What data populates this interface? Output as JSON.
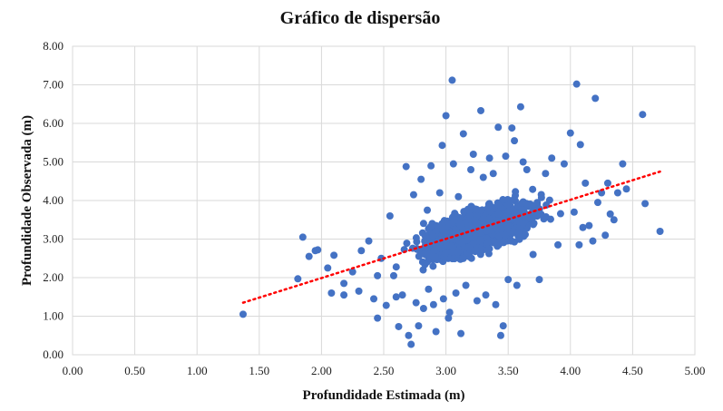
{
  "chart_data": {
    "type": "scatter",
    "title": "Gráfico de dispersão",
    "xlabel": "Profundidade Estimada (m)",
    "ylabel": "Profundidade Observada (m)",
    "xlim": [
      0,
      5
    ],
    "ylim": [
      0,
      8
    ],
    "x_ticks": [
      "0.00",
      "0.50",
      "1.00",
      "1.50",
      "2.00",
      "2.50",
      "3.00",
      "3.50",
      "4.00",
      "4.50",
      "5.00"
    ],
    "y_ticks": [
      "0.00",
      "1.00",
      "2.00",
      "3.00",
      "4.00",
      "5.00",
      "6.00",
      "7.00",
      "8.00"
    ],
    "grid": true,
    "series": [
      {
        "marker_color": "#4472c4",
        "points": [
          [
            1.37,
            1.05
          ],
          [
            1.81,
            1.97
          ],
          [
            1.85,
            3.05
          ],
          [
            1.9,
            2.55
          ],
          [
            1.95,
            2.7
          ],
          [
            1.97,
            2.72
          ],
          [
            2.08,
            1.6
          ],
          [
            2.05,
            2.25
          ],
          [
            2.1,
            2.58
          ],
          [
            2.18,
            1.55
          ],
          [
            2.18,
            1.85
          ],
          [
            2.25,
            2.15
          ],
          [
            2.3,
            1.65
          ],
          [
            2.32,
            2.7
          ],
          [
            2.38,
            2.95
          ],
          [
            2.42,
            1.45
          ],
          [
            2.45,
            0.95
          ],
          [
            2.45,
            2.05
          ],
          [
            2.48,
            2.5
          ],
          [
            2.52,
            1.28
          ],
          [
            2.55,
            3.6
          ],
          [
            2.58,
            2.05
          ],
          [
            2.6,
            1.5
          ],
          [
            2.62,
            0.73
          ],
          [
            2.65,
            1.55
          ],
          [
            2.68,
            4.88
          ],
          [
            2.7,
            0.5
          ],
          [
            2.72,
            0.27
          ],
          [
            2.74,
            4.15
          ],
          [
            2.76,
            1.35
          ],
          [
            2.78,
            0.75
          ],
          [
            2.8,
            4.55
          ],
          [
            2.82,
            1.2
          ],
          [
            2.85,
            3.75
          ],
          [
            2.86,
            1.7
          ],
          [
            2.88,
            4.9
          ],
          [
            2.9,
            1.3
          ],
          [
            2.92,
            0.6
          ],
          [
            2.95,
            4.2
          ],
          [
            2.97,
            5.43
          ],
          [
            2.98,
            1.45
          ],
          [
            3.0,
            6.2
          ],
          [
            3.02,
            0.95
          ],
          [
            3.03,
            1.1
          ],
          [
            3.05,
            7.12
          ],
          [
            3.06,
            4.95
          ],
          [
            3.08,
            1.6
          ],
          [
            3.1,
            4.1
          ],
          [
            3.12,
            0.55
          ],
          [
            3.14,
            5.73
          ],
          [
            3.16,
            1.8
          ],
          [
            3.2,
            4.8
          ],
          [
            3.22,
            5.2
          ],
          [
            3.25,
            1.4
          ],
          [
            3.28,
            6.33
          ],
          [
            3.3,
            4.6
          ],
          [
            3.32,
            1.55
          ],
          [
            3.35,
            5.1
          ],
          [
            3.38,
            4.7
          ],
          [
            3.4,
            1.3
          ],
          [
            3.42,
            5.9
          ],
          [
            3.44,
            0.5
          ],
          [
            3.46,
            0.75
          ],
          [
            3.48,
            5.15
          ],
          [
            3.5,
            1.95
          ],
          [
            3.53,
            5.88
          ],
          [
            3.55,
            5.55
          ],
          [
            3.57,
            1.8
          ],
          [
            3.6,
            6.43
          ],
          [
            3.62,
            5.0
          ],
          [
            3.65,
            4.8
          ],
          [
            3.7,
            2.6
          ],
          [
            3.75,
            1.95
          ],
          [
            3.8,
            4.7
          ],
          [
            3.85,
            5.1
          ],
          [
            3.9,
            2.85
          ],
          [
            3.95,
            4.95
          ],
          [
            4.0,
            5.75
          ],
          [
            4.03,
            3.7
          ],
          [
            4.05,
            7.02
          ],
          [
            4.07,
            2.85
          ],
          [
            4.08,
            5.45
          ],
          [
            4.1,
            3.3
          ],
          [
            4.12,
            4.45
          ],
          [
            4.15,
            3.35
          ],
          [
            4.18,
            2.95
          ],
          [
            4.2,
            6.65
          ],
          [
            4.22,
            3.95
          ],
          [
            4.25,
            4.2
          ],
          [
            4.28,
            3.1
          ],
          [
            4.3,
            4.45
          ],
          [
            4.32,
            3.65
          ],
          [
            4.35,
            3.5
          ],
          [
            4.38,
            4.2
          ],
          [
            4.42,
            4.95
          ],
          [
            4.45,
            4.3
          ],
          [
            4.58,
            6.23
          ],
          [
            4.6,
            3.92
          ],
          [
            4.72,
            3.2
          ]
        ]
      }
    ],
    "trendline": {
      "style": "dotted",
      "color": "#ff0000",
      "x": [
        1.37,
        4.72
      ],
      "y": [
        1.35,
        4.75
      ]
    }
  }
}
